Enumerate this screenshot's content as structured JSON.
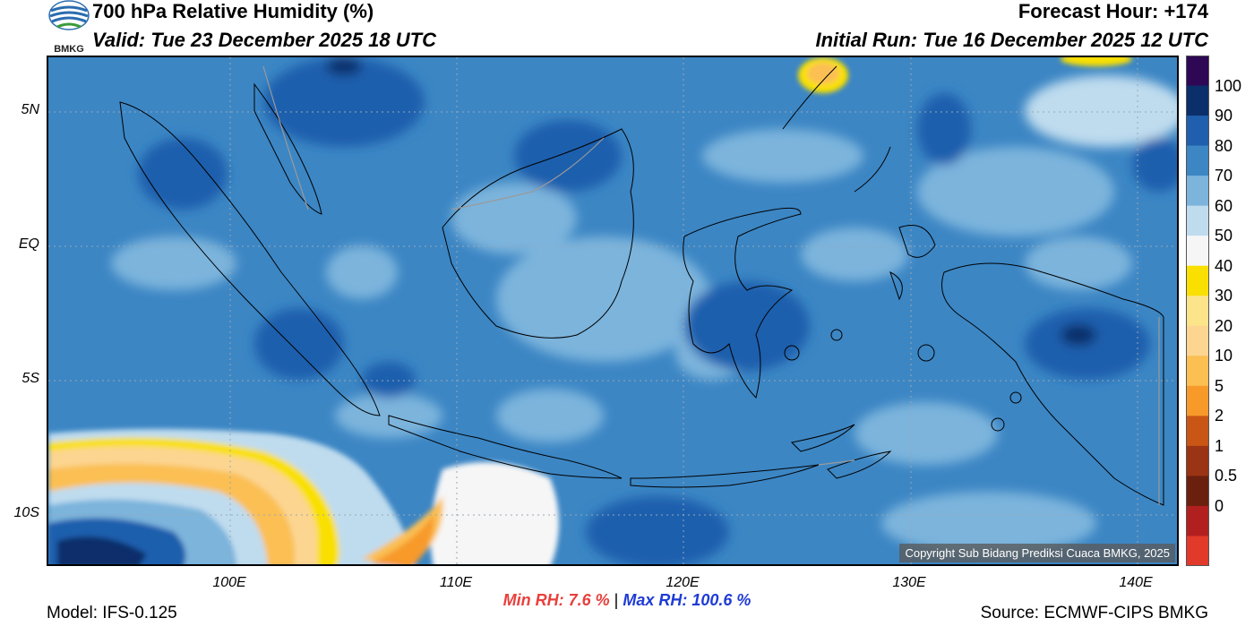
{
  "header": {
    "logo_text": "BMKG",
    "title": "700 hPa Relative Humidity (%)",
    "valid": "Valid: Tue 23 December 2025 18 UTC",
    "forecast_hour": "Forecast Hour: +174",
    "initial_run": "Initial Run: Tue 16 December 2025 12 UTC"
  },
  "map": {
    "region": "Indonesia",
    "lat_labels": [
      "5N",
      "EQ",
      "5S",
      "10S"
    ],
    "lon_labels": [
      "100E",
      "110E",
      "120E",
      "130E",
      "140E"
    ],
    "copyright": "Copyright Sub Bidang Prediksi Cuaca BMKG, 2025"
  },
  "stats": {
    "min_rh": "Min RH:   7.6 %",
    "separator": "|",
    "max_rh": "Max RH: 100.6 %"
  },
  "footer": {
    "model": "Model: IFS-0.125",
    "source": "Source: ECMWF-CIPS BMKG"
  },
  "colorbar": {
    "labels": [
      "100",
      "90",
      "80",
      "70",
      "60",
      "50",
      "40",
      "30",
      "20",
      "10",
      "5",
      "2",
      "1",
      "0.5",
      "0"
    ],
    "colors": [
      "#2e0854",
      "#0b2f6b",
      "#1f5fad",
      "#3c86c4",
      "#7cb4dc",
      "#bfdcee",
      "#f6f6f6",
      "#f9e000",
      "#fce48a",
      "#fcd591",
      "#fbbf52",
      "#f79a29",
      "#c95614",
      "#9a3414",
      "#6b200e",
      "#b21f1f",
      "#e23a2a"
    ]
  },
  "palette": {
    "ocean_base": "#3c86c4",
    "light_blue": "#7cb4dc",
    "dark_blue": "#1f5fad",
    "yellow": "#f9e000",
    "orange": "#fbbf52",
    "white": "#f6f6f6"
  }
}
